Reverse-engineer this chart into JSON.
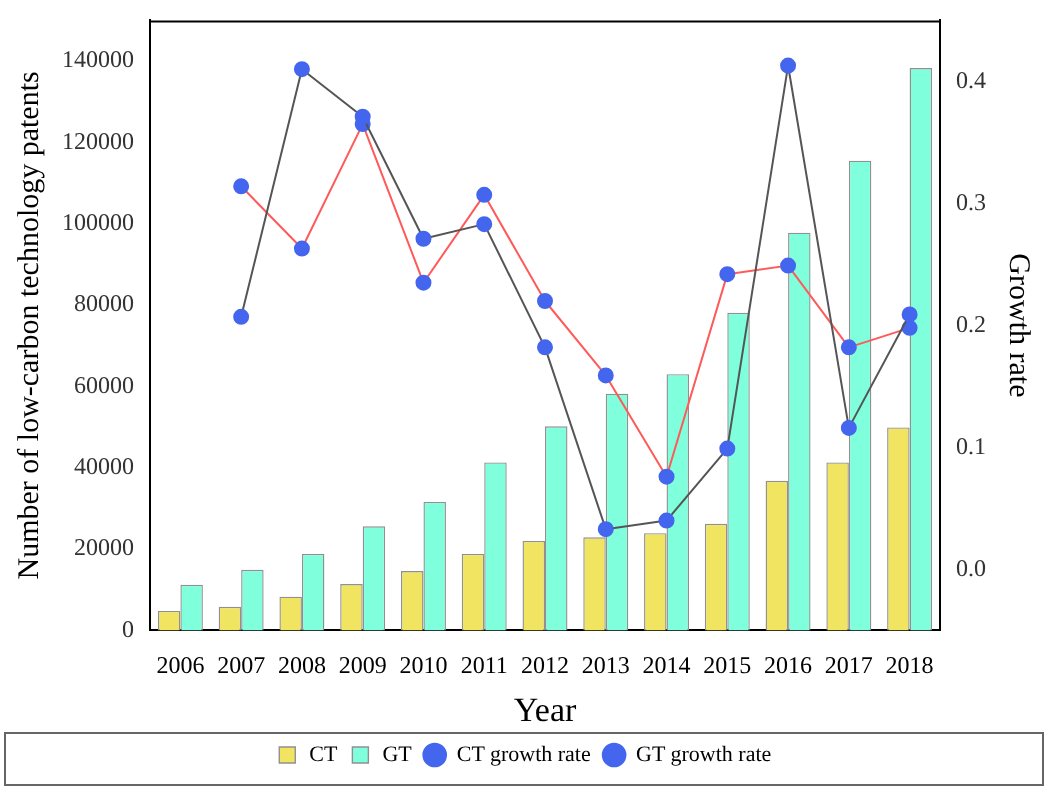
{
  "chart_data": {
    "type": "bar",
    "xlabel": "Year",
    "ylabel": "Number of low-carbon technology patents",
    "y2label": "Growth rate",
    "categories": [
      "2006",
      "2007",
      "2008",
      "2009",
      "2010",
      "2011",
      "2012",
      "2013",
      "2014",
      "2015",
      "2016",
      "2017",
      "2018"
    ],
    "series": [
      {
        "name": "CT",
        "type": "bar",
        "color": "#f0e460",
        "values": [
          4800,
          5800,
          8300,
          11400,
          14600,
          18800,
          22000,
          22900,
          23900,
          26200,
          36800,
          41300,
          49900
        ]
      },
      {
        "name": "GT",
        "type": "bar",
        "color": "#7fffdc",
        "values": [
          11200,
          14900,
          18800,
          25600,
          31600,
          41300,
          50200,
          58200,
          63000,
          78100,
          97800,
          115500,
          138300
        ]
      },
      {
        "name": "CT growth rate",
        "type": "line",
        "axis": "y2",
        "color": "#555555",
        "values": [
          null,
          0.207,
          0.41,
          0.371,
          0.271,
          0.283,
          0.182,
          0.033,
          0.04,
          0.099,
          0.413,
          0.116,
          0.209
        ]
      },
      {
        "name": "GT growth rate",
        "type": "line",
        "axis": "y2",
        "color": "#ff5a5a",
        "values": [
          null,
          0.314,
          0.263,
          0.365,
          0.235,
          0.307,
          0.22,
          0.159,
          0.076,
          0.242,
          0.249,
          0.182,
          0.198
        ]
      }
    ],
    "marker": "circle",
    "ylim": [
      0,
      150000
    ],
    "yticks": [
      0,
      20000,
      40000,
      60000,
      80000,
      100000,
      120000,
      140000
    ],
    "y2lim": [
      -0.05,
      0.45
    ],
    "y2ticks": [
      {
        "value": 0,
        "label": "0.0"
      },
      {
        "value": 0.1,
        "label": "0.1"
      },
      {
        "value": 0.2,
        "label": "0.2"
      },
      {
        "value": 0.3,
        "label": "0.3"
      },
      {
        "value": 0.4,
        "label": "0.4"
      }
    ],
    "grid": false,
    "legend": "bottom"
  }
}
